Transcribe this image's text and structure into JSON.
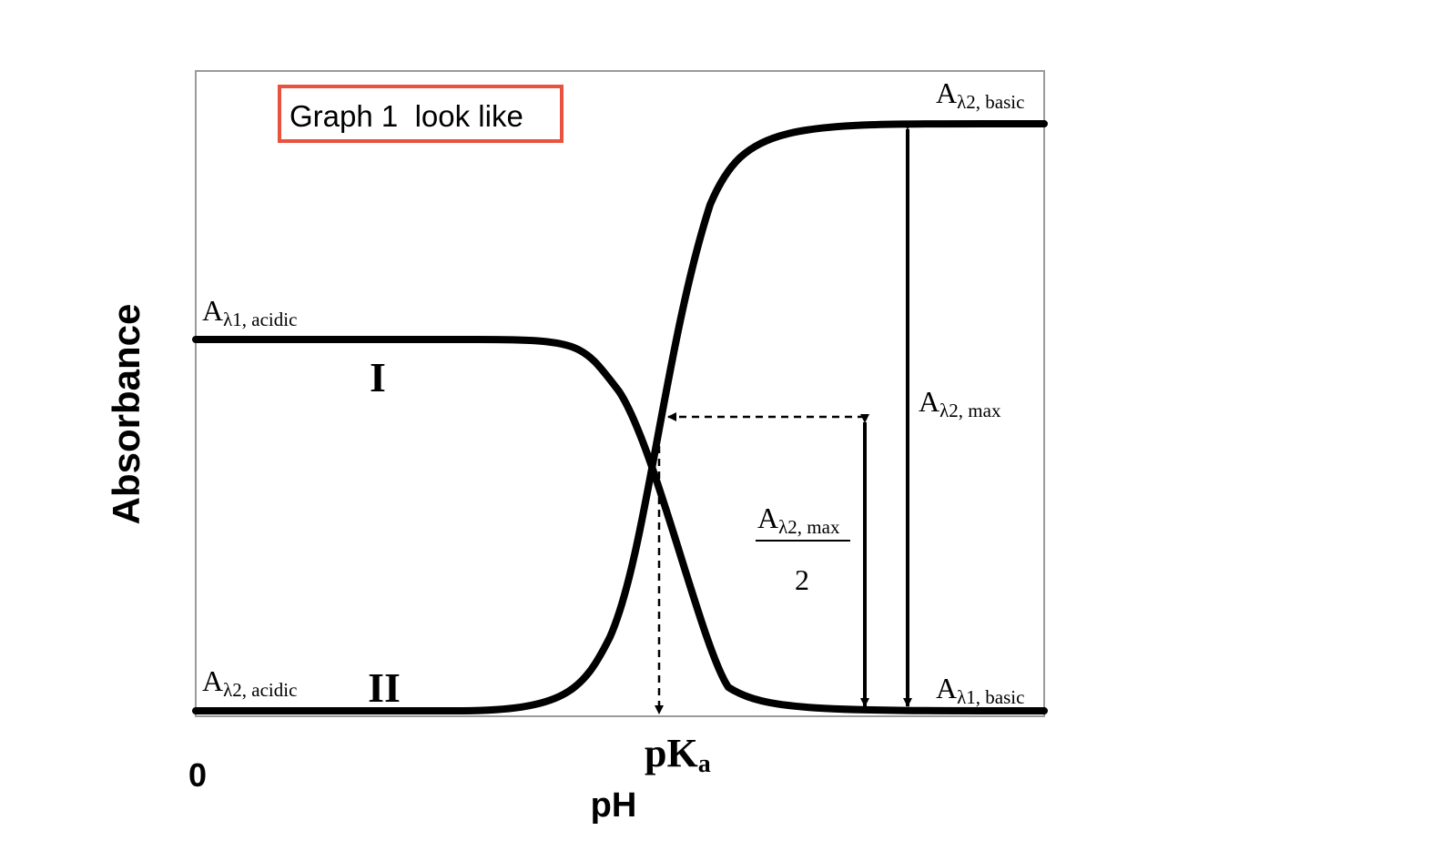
{
  "title_box": {
    "text": "Graph 1  look like",
    "border_color": "#e8523f"
  },
  "axes": {
    "y_label": "Absorbance",
    "x_label": "pH",
    "x_origin": "0",
    "x_mark": {
      "main": "pK",
      "sub": "a"
    }
  },
  "curves": {
    "curve_1": {
      "label": "I"
    },
    "curve_2": {
      "label": "II"
    }
  },
  "levels": {
    "lambda1_acidic": {
      "main": "A",
      "sub": "λ1, acidic"
    },
    "lambda2_acidic": {
      "main": "A",
      "sub": "λ2, acidic"
    },
    "lambda2_basic": {
      "main": "A",
      "sub": "λ2, basic"
    },
    "lambda1_basic": {
      "main": "A",
      "sub": "λ1, basic"
    },
    "lambda2_max": {
      "main": "A",
      "sub": "λ2, max"
    }
  },
  "half_max": {
    "numerator_main": "A",
    "numerator_sub": "λ2, max",
    "denominator": "2"
  },
  "colors": {
    "curve": "#000000",
    "frame": "#9a9a9a",
    "accent": "#e8523f"
  }
}
